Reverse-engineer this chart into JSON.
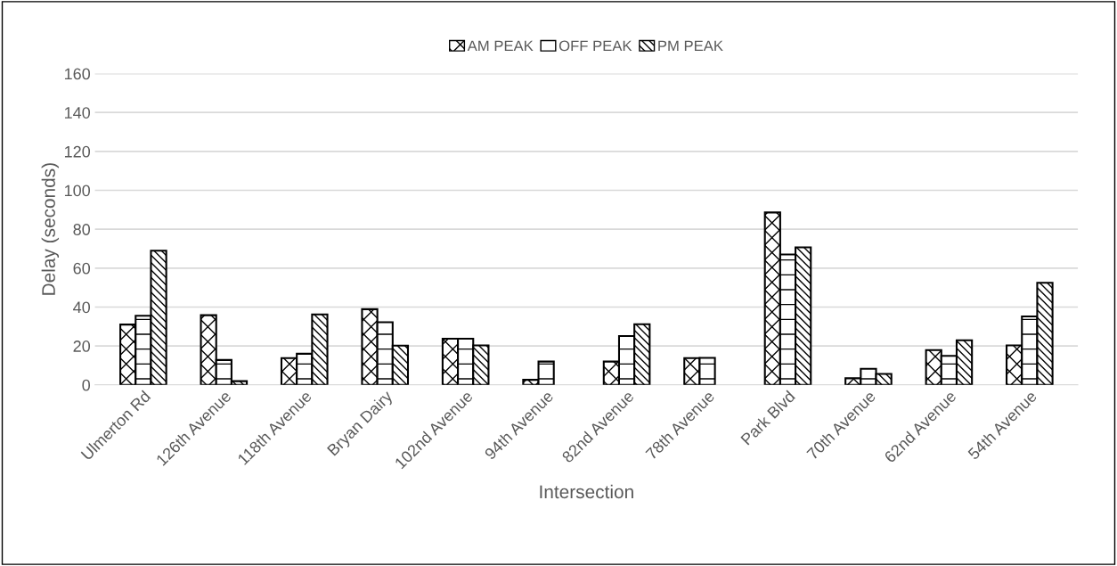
{
  "chart_data": {
    "type": "bar",
    "xlabel": "Intersection",
    "ylabel": "Delay (seconds)",
    "categories": [
      "Ulmerton Rd",
      "126th Avenue",
      "118th Avenue",
      "Bryan Dairy",
      "102nd Avenue",
      "94th Avenue",
      "82nd Avenue",
      "78th Avenue",
      "Park Blvd",
      "70th Avenue",
      "62nd Avenue",
      "54th Avenue"
    ],
    "series": [
      {
        "name": "AM PEAK",
        "color": "#000000",
        "values": [
          31,
          35.8,
          13.8,
          38.9,
          23.7,
          2.6,
          12,
          13.8,
          88.6,
          3.4,
          17.9,
          20.3
        ]
      },
      {
        "name": "OFF PEAK",
        "color": "#000000",
        "values": [
          35.5,
          12.8,
          16,
          32.2,
          23.7,
          12,
          25.1,
          13.9,
          67,
          8.3,
          14.9,
          35.2
        ]
      },
      {
        "name": "PM PEAK",
        "color": "#000000",
        "values": [
          69,
          1.9,
          36.2,
          20.2,
          20.3,
          null,
          31.2,
          null,
          70.7,
          5.6,
          22.9,
          52.5
        ]
      }
    ],
    "ylim": [
      0,
      160
    ],
    "yticks": [
      0,
      20,
      40,
      60,
      80,
      100,
      120,
      140,
      160
    ],
    "grid": "y",
    "legend": "top"
  }
}
